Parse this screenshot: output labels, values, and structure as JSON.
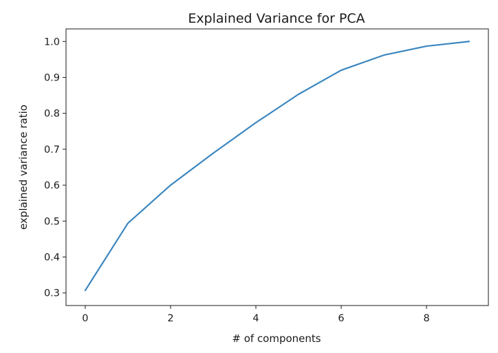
{
  "chart_data": {
    "type": "line",
    "title": "Explained Variance for PCA",
    "xlabel": "# of components",
    "ylabel": "explained variance ratio",
    "xlim": [
      -0.45,
      9.45
    ],
    "ylim": [
      0.265,
      1.035
    ],
    "xticks": [
      0,
      2,
      4,
      6,
      8
    ],
    "xtick_labels": [
      "0",
      "2",
      "4",
      "6",
      "8"
    ],
    "yticks": [
      0.3,
      0.4,
      0.5,
      0.6,
      0.7,
      0.8,
      0.9,
      1.0
    ],
    "ytick_labels": [
      "0.3",
      "0.4",
      "0.5",
      "0.6",
      "0.7",
      "0.8",
      "0.9",
      "1.0"
    ],
    "grid": false,
    "series": [
      {
        "color": "#3a86c0",
        "x": [
          0,
          1,
          2,
          3,
          4,
          5,
          6,
          7,
          8,
          9
        ],
        "y": [
          0.307,
          0.494,
          0.6,
          0.689,
          0.774,
          0.853,
          0.92,
          0.962,
          0.987,
          1.0
        ]
      }
    ]
  }
}
